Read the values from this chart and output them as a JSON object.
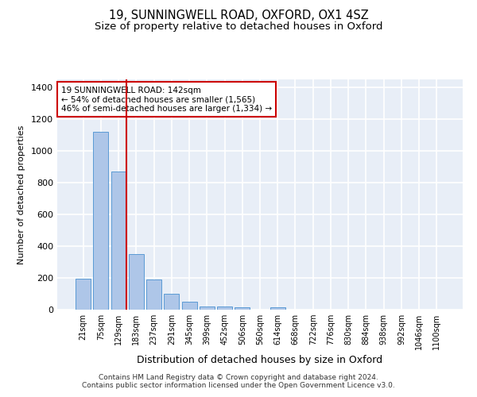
{
  "title": "19, SUNNINGWELL ROAD, OXFORD, OX1 4SZ",
  "subtitle": "Size of property relative to detached houses in Oxford",
  "xlabel": "Distribution of detached houses by size in Oxford",
  "ylabel": "Number of detached properties",
  "categories": [
    "21sqm",
    "75sqm",
    "129sqm",
    "183sqm",
    "237sqm",
    "291sqm",
    "345sqm",
    "399sqm",
    "452sqm",
    "506sqm",
    "560sqm",
    "614sqm",
    "668sqm",
    "722sqm",
    "776sqm",
    "830sqm",
    "884sqm",
    "938sqm",
    "992sqm",
    "1046sqm",
    "1100sqm"
  ],
  "values": [
    195,
    1120,
    870,
    350,
    190,
    100,
    50,
    22,
    18,
    17,
    0,
    15,
    0,
    0,
    0,
    0,
    0,
    0,
    0,
    0,
    0
  ],
  "bar_color": "#aec6e8",
  "bar_edge_color": "#5b9bd5",
  "highlight_index": 2,
  "highlight_line_color": "#cc0000",
  "annotation_text": "19 SUNNINGWELL ROAD: 142sqm\n← 54% of detached houses are smaller (1,565)\n46% of semi-detached houses are larger (1,334) →",
  "annotation_box_color": "#ffffff",
  "annotation_box_edgecolor": "#cc0000",
  "footnote": "Contains HM Land Registry data © Crown copyright and database right 2024.\nContains public sector information licensed under the Open Government Licence v3.0.",
  "ylim": [
    0,
    1450
  ],
  "yticks": [
    0,
    200,
    400,
    600,
    800,
    1000,
    1200,
    1400
  ],
  "background_color": "#e8eef7",
  "grid_color": "#ffffff",
  "title_fontsize": 10.5,
  "subtitle_fontsize": 9.5
}
